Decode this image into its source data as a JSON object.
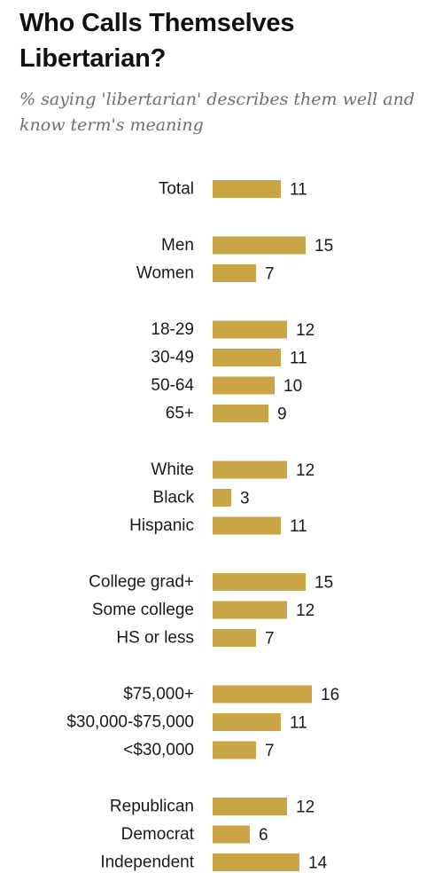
{
  "chart_data": {
    "type": "bar",
    "orientation": "horizontal",
    "title": "Who Calls Themselves Libertarian?",
    "subtitle": "% saying 'libertarian' describes them well and know term's meaning",
    "bar_color": "#c9a545",
    "groups": [
      {
        "categories": [
          "Total"
        ],
        "values": [
          11
        ]
      },
      {
        "categories": [
          "Men",
          "Women"
        ],
        "values": [
          15,
          7
        ]
      },
      {
        "categories": [
          "18-29",
          "30-49",
          "50-64",
          "65+"
        ],
        "values": [
          12,
          11,
          10,
          9
        ]
      },
      {
        "categories": [
          "White",
          "Black",
          "Hispanic"
        ],
        "values": [
          12,
          3,
          11
        ]
      },
      {
        "categories": [
          "College grad+",
          "Some college",
          "HS or less"
        ],
        "values": [
          15,
          12,
          7
        ]
      },
      {
        "categories": [
          "$75,000+",
          "$30,000-$75,000",
          "<$30,000"
        ],
        "values": [
          16,
          11,
          7
        ]
      },
      {
        "categories": [
          "Republican",
          "Democrat",
          "Independent"
        ],
        "values": [
          12,
          6,
          14
        ]
      }
    ],
    "xlim": [
      0,
      16
    ],
    "grid": false,
    "legend": "none"
  }
}
